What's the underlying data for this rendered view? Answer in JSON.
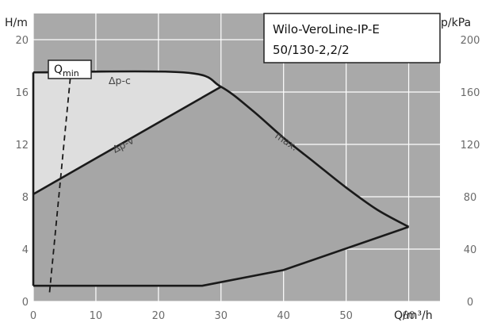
{
  "chart_data": {
    "type": "area",
    "title": "Wilo-VeroLine-IP-E",
    "subtitle": "50/130-2,2/2",
    "xlabel": "Q/m³/h",
    "ylabel_left": "H/m",
    "ylabel_right": "p/kPa",
    "xlim": [
      0,
      65
    ],
    "ylim": [
      0,
      22
    ],
    "ylim_right": [
      0,
      220
    ],
    "x_ticks": [
      0,
      10,
      20,
      30,
      40,
      50,
      60
    ],
    "y_ticks_left": [
      0,
      4,
      8,
      12,
      16,
      20
    ],
    "y_ticks_right": [
      0,
      40,
      80,
      120,
      160,
      200
    ],
    "grid": true,
    "series": [
      {
        "name": "max.",
        "x": [
          0,
          24,
          30,
          35,
          40,
          45,
          50,
          55,
          60
        ],
        "y": [
          17.5,
          17.5,
          16.4,
          14.6,
          12.5,
          10.6,
          8.7,
          7.0,
          5.7
        ]
      },
      {
        "name": "Δp-c",
        "x": [
          0,
          24
        ],
        "y": [
          17.5,
          17.5
        ]
      },
      {
        "name": "Δp-v",
        "x": [
          0,
          30
        ],
        "y": [
          8.2,
          16.4
        ]
      },
      {
        "name": "",
        "x": [
          0,
          27,
          40,
          60
        ],
        "y": [
          1.2,
          1.2,
          2.4,
          5.7
        ]
      },
      {
        "name": "",
        "x": [
          2.6,
          6
        ],
        "y": [
          0.7,
          17.5
        ]
      }
    ],
    "annotations": [
      {
        "label": "Q",
        "subscript": "min"
      },
      {
        "label": "Δp-c"
      },
      {
        "label": "Δp-v"
      },
      {
        "label": "max."
      }
    ]
  },
  "colors": {
    "background": "#a9a9a9",
    "light_region": "#dedede",
    "dark_region": "#a6a6a6",
    "curve": "#1a1a1a",
    "grid": "#ffffff"
  }
}
